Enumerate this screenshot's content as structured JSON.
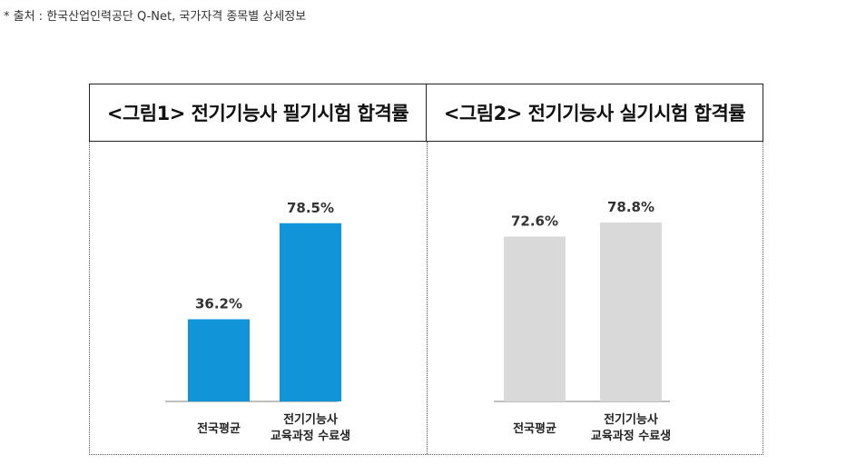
{
  "source_note": "* 출처 : 한국산업인력공단 Q-Net, 국가자격 종목별 상세정보",
  "chart_data": [
    {
      "type": "bar",
      "title": "<그림1> 전기기능사 필기시험 합격률",
      "categories": [
        [
          "전국평균"
        ],
        [
          "전기기능사",
          "교육과정 수료생"
        ]
      ],
      "values": [
        36.2,
        78.5
      ],
      "data_labels": [
        "36.2%",
        "78.5%"
      ],
      "bar_color": "#1295d8",
      "ylim": [
        0,
        100
      ],
      "grid": false
    },
    {
      "type": "bar",
      "title": "<그림2> 전기기능사 실기시험 합격률",
      "categories": [
        [
          "전국평균"
        ],
        [
          "전기기능사",
          "교육과정 수료생"
        ]
      ],
      "values": [
        72.6,
        78.8
      ],
      "data_labels": [
        "72.6%",
        "78.8%"
      ],
      "bar_color": "#d9d9d9",
      "ylim": [
        0,
        100
      ],
      "grid": false
    }
  ]
}
